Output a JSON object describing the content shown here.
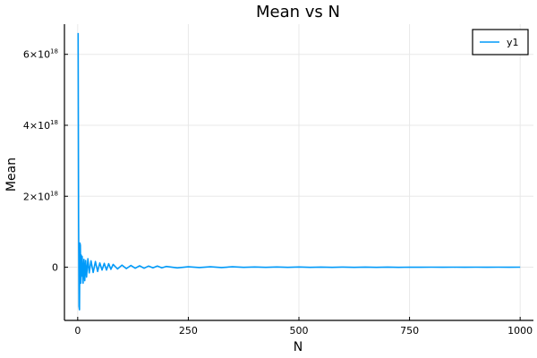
{
  "chart_data": {
    "type": "line",
    "title": "Mean vs N",
    "xlabel": "N",
    "ylabel": "Mean",
    "xlim": [
      -30,
      1030
    ],
    "ylim": [
      -1.5e+18,
      6.85e+18
    ],
    "grid": true,
    "legend_position": "top-right",
    "x_ticks": [
      {
        "value": 0,
        "label": "0"
      },
      {
        "value": 250,
        "label": "250"
      },
      {
        "value": 500,
        "label": "500"
      },
      {
        "value": 750,
        "label": "750"
      },
      {
        "value": 1000,
        "label": "1000"
      }
    ],
    "y_ticks": [
      {
        "value": 0,
        "label": "0"
      },
      {
        "value": 2e+18,
        "label": "2×10",
        "exp": "18"
      },
      {
        "value": 4e+18,
        "label": "4×10",
        "exp": "18"
      },
      {
        "value": 6e+18,
        "label": "6×10",
        "exp": "18"
      }
    ],
    "series": [
      {
        "name": "y1",
        "color": "#009af9",
        "x": [
          1,
          2,
          3,
          4,
          5,
          6,
          7,
          8,
          9,
          10,
          12,
          14,
          16,
          18,
          20,
          23,
          26,
          30,
          35,
          40,
          45,
          50,
          55,
          60,
          65,
          70,
          75,
          80,
          90,
          100,
          110,
          120,
          130,
          140,
          150,
          160,
          170,
          180,
          190,
          200,
          225,
          250,
          275,
          300,
          325,
          350,
          375,
          400,
          425,
          450,
          475,
          500,
          525,
          550,
          575,
          600,
          625,
          650,
          675,
          700,
          725,
          750,
          775,
          800,
          825,
          850,
          875,
          900,
          925,
          950,
          975,
          1000
        ],
        "values": [
          6.6e+18,
          1.4e+18,
          -1.1e+18,
          -1.2e+18,
          6.8e+17,
          6.2e+17,
          -4.5e+17,
          3.4e+17,
          -2.5e+17,
          3e+17,
          -4.5e+17,
          2.2e+17,
          -3.8e+17,
          1.9e+17,
          -2.8e+17,
          2.4e+17,
          -1.6e+17,
          1.8e+17,
          -1.5e+17,
          1.6e+17,
          -1.2e+17,
          1.2e+17,
          -8e+16,
          1.1e+17,
          -8e+16,
          1e+17,
          -6e+16,
          8e+16,
          -5e+16,
          6e+16,
          -4e+16,
          5e+16,
          -3e+16,
          4e+16,
          -3e+16,
          3e+16,
          -2e+16,
          3e+16,
          -2e+16,
          2e+16,
          -2e+16,
          1e+16,
          -1e+16,
          1e+16,
          -1e+16,
          1e+16,
          -5000000000000000.0,
          5000000000000000.0,
          -5000000000000000.0,
          5000000000000000.0,
          -5000000000000000.0,
          5000000000000000.0,
          -4000000000000000.0,
          4000000000000000.0,
          -4000000000000000.0,
          4000000000000000.0,
          -3000000000000000.0,
          3000000000000000.0,
          -3000000000000000.0,
          3000000000000000.0,
          -3000000000000000.0,
          2000000000000000.0,
          -2000000000000000.0,
          2000000000000000.0,
          -2000000000000000.0,
          2000000000000000.0,
          -2000000000000000.0,
          2000000000000000.0,
          -2000000000000000.0,
          1000000000000000.0,
          -1000000000000000.0,
          1000000000000000.0
        ]
      }
    ]
  }
}
